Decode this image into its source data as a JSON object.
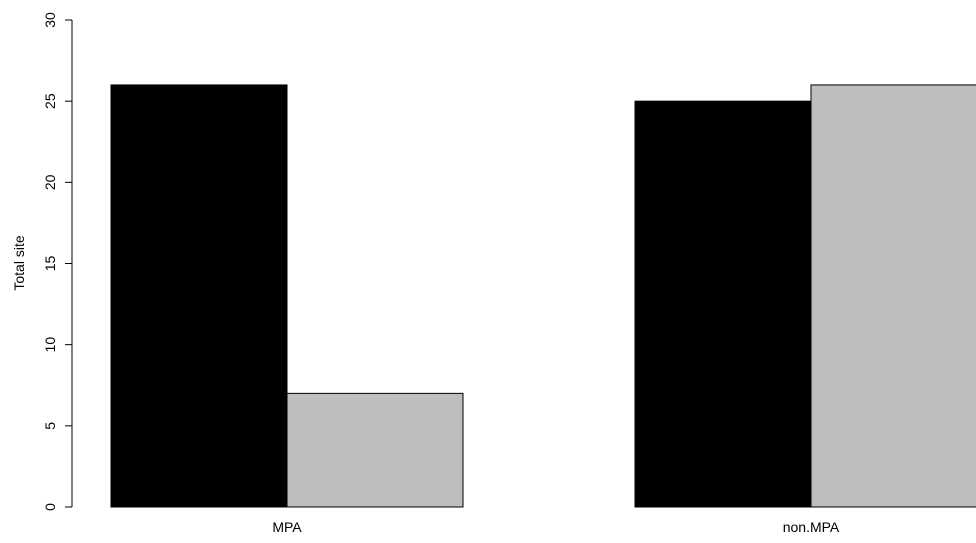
{
  "chart_data": {
    "type": "bar",
    "categories": [
      "MPA",
      "non.MPA"
    ],
    "series": [
      {
        "values": [
          26,
          25
        ],
        "color": "#000000"
      },
      {
        "values": [
          7,
          26
        ],
        "color": "#bebebe"
      }
    ],
    "ylabel": "Total site",
    "ylim": [
      0,
      30
    ],
    "yticks": [
      0,
      5,
      10,
      15,
      20,
      25,
      30
    ],
    "grid": false,
    "legend": "none"
  }
}
